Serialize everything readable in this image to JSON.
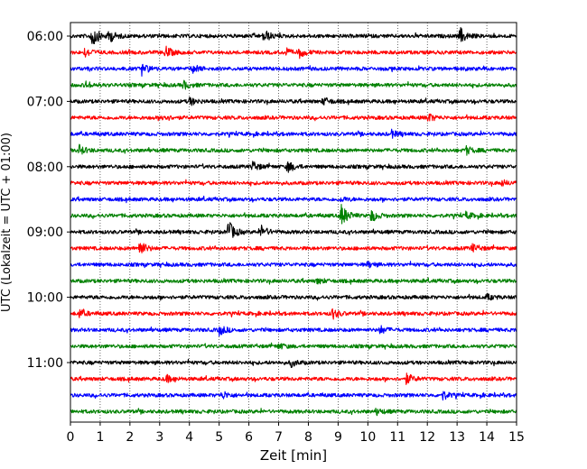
{
  "chart_data": {
    "type": "line",
    "xlabel": "Zeit  [min]",
    "ylabel": "UTC (Lokalzeit = UTC + 01:00)",
    "xlim": [
      0,
      15
    ],
    "x_ticks": [
      0,
      1,
      2,
      3,
      4,
      5,
      6,
      7,
      8,
      9,
      10,
      11,
      12,
      13,
      14,
      15
    ],
    "y_tick_labels": [
      "06:00",
      "07:00",
      "08:00",
      "09:00",
      "10:00",
      "11:00"
    ],
    "grid": "vertical-dotted",
    "trace_interval_minutes": 15,
    "trace_colors": [
      "#000000",
      "#ff0000",
      "#0000ff",
      "#008000"
    ],
    "series": [
      {
        "start": "06:00",
        "events": [
          [
            0.7,
            1.0
          ],
          [
            1.3,
            0.5
          ],
          [
            6.5,
            0.5
          ],
          [
            13.1,
            0.6
          ]
        ]
      },
      {
        "start": "06:15",
        "events": [
          [
            0.5,
            0.35
          ],
          [
            3.2,
            0.45
          ],
          [
            7.2,
            0.3
          ],
          [
            7.7,
            0.35
          ]
        ]
      },
      {
        "start": "06:30",
        "events": [
          [
            2.4,
            0.45
          ],
          [
            4.1,
            0.3
          ]
        ]
      },
      {
        "start": "06:45",
        "events": [
          [
            0.5,
            0.25
          ],
          [
            3.8,
            0.3
          ]
        ]
      },
      {
        "start": "07:00",
        "events": [
          [
            4.0,
            0.3
          ],
          [
            8.5,
            0.3
          ]
        ]
      },
      {
        "start": "07:15",
        "events": [
          [
            3.1,
            0.25
          ],
          [
            12.0,
            0.35
          ]
        ]
      },
      {
        "start": "07:30",
        "events": [
          [
            10.8,
            0.25
          ]
        ]
      },
      {
        "start": "07:45",
        "events": [
          [
            0.3,
            0.35
          ],
          [
            13.3,
            0.3
          ]
        ]
      },
      {
        "start": "08:00",
        "events": [
          [
            6.1,
            0.4
          ],
          [
            7.3,
            0.45
          ]
        ]
      },
      {
        "start": "08:15",
        "events": [
          [
            14.5,
            0.2
          ]
        ]
      },
      {
        "start": "08:30",
        "events": [
          [
            9.1,
            0.15
          ]
        ]
      },
      {
        "start": "08:45",
        "events": [
          [
            9.1,
            0.9
          ],
          [
            10.1,
            0.5
          ],
          [
            13.3,
            0.25
          ]
        ]
      },
      {
        "start": "09:00",
        "events": [
          [
            5.3,
            0.9
          ],
          [
            6.4,
            0.5
          ]
        ]
      },
      {
        "start": "09:15",
        "events": [
          [
            2.3,
            0.7
          ],
          [
            13.5,
            0.3
          ]
        ]
      },
      {
        "start": "09:30",
        "events": [
          [
            10.0,
            0.2
          ]
        ]
      },
      {
        "start": "09:45",
        "events": [
          [
            8.3,
            0.2
          ]
        ]
      },
      {
        "start": "10:00",
        "events": [
          [
            14.0,
            0.2
          ]
        ]
      },
      {
        "start": "10:15",
        "events": [
          [
            0.3,
            0.3
          ],
          [
            8.8,
            0.4
          ]
        ]
      },
      {
        "start": "10:30",
        "events": [
          [
            5.0,
            0.4
          ],
          [
            10.4,
            0.3
          ]
        ]
      },
      {
        "start": "10:45",
        "events": [
          [
            7.0,
            0.2
          ]
        ]
      },
      {
        "start": "11:00",
        "events": [
          [
            7.4,
            0.3
          ]
        ]
      },
      {
        "start": "11:15",
        "events": [
          [
            3.2,
            0.3
          ],
          [
            11.3,
            0.4
          ]
        ]
      },
      {
        "start": "11:30",
        "events": [
          [
            5.1,
            0.3
          ],
          [
            12.5,
            0.35
          ]
        ]
      },
      {
        "start": "11:45",
        "events": [
          [
            10.3,
            0.2
          ]
        ]
      }
    ]
  }
}
